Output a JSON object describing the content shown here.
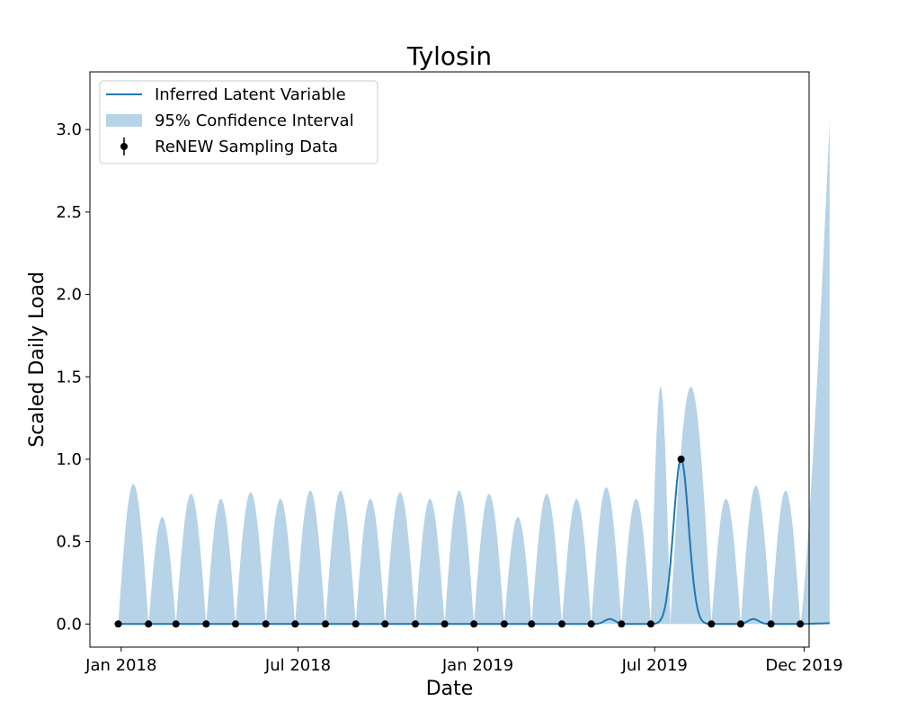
{
  "chart_data": {
    "type": "line",
    "title": "Tylosin",
    "xlabel": "Date",
    "ylabel": "Scaled Daily Load",
    "ylim": [
      -0.14,
      3.35
    ],
    "xlim_days": [
      -32,
      704
    ],
    "x_ticks": [
      {
        "day": 0,
        "label": "Jan 2018"
      },
      {
        "day": 181,
        "label": "Jul 2018"
      },
      {
        "day": 365,
        "label": "Jan 2019"
      },
      {
        "day": 546,
        "label": "Jul 2019"
      },
      {
        "day": 699,
        "label": "Dec 2019"
      }
    ],
    "y_ticks": [
      {
        "value": 0.0,
        "label": "0.0"
      },
      {
        "value": 0.5,
        "label": "0.5"
      },
      {
        "value": 1.0,
        "label": "1.0"
      },
      {
        "value": 1.5,
        "label": "1.5"
      },
      {
        "value": 2.0,
        "label": "2.0"
      },
      {
        "value": 2.5,
        "label": "2.5"
      },
      {
        "value": 3.0,
        "label": "3.0"
      }
    ],
    "legend": {
      "placement": "top-left",
      "entries": [
        {
          "label": "Inferred Latent Variable",
          "kind": "line"
        },
        {
          "label": "95% Confidence Interval",
          "kind": "band"
        },
        {
          "label": "ReNEW Sampling Data",
          "kind": "point"
        }
      ]
    },
    "colors": {
      "line": "#1f77b4",
      "band": "#b6d3e7",
      "points": "#000000"
    },
    "sampling_data": {
      "day": [
        -3,
        28,
        56,
        87,
        117,
        148,
        178,
        209,
        240,
        270,
        301,
        331,
        361,
        392,
        420,
        451,
        481,
        512,
        542,
        573,
        604,
        634,
        665,
        695
      ],
      "value": [
        0,
        0,
        0,
        0,
        0,
        0,
        0,
        0,
        0,
        0,
        0,
        0,
        0,
        0,
        0,
        0,
        0,
        0,
        0,
        1.0,
        0,
        0,
        0,
        0
      ]
    },
    "latent_bumps": [
      {
        "center_day": 573,
        "peak": 1.0,
        "halfwidth_days": 17
      },
      {
        "center_day": 500,
        "peak": 0.03,
        "halfwidth_days": 12
      },
      {
        "center_day": 647,
        "peak": 0.03,
        "halfwidth_days": 12
      }
    ],
    "latent_end": {
      "start_day": 695,
      "end_day": 725,
      "end_value": 0.005
    },
    "ci_peaks": [
      {
        "from_day": -3,
        "to_day": 28,
        "peak": 0.85
      },
      {
        "from_day": 28,
        "to_day": 56,
        "peak": 0.65
      },
      {
        "from_day": 56,
        "to_day": 87,
        "peak": 0.79
      },
      {
        "from_day": 87,
        "to_day": 117,
        "peak": 0.76
      },
      {
        "from_day": 117,
        "to_day": 148,
        "peak": 0.8
      },
      {
        "from_day": 148,
        "to_day": 178,
        "peak": 0.76
      },
      {
        "from_day": 178,
        "to_day": 209,
        "peak": 0.81
      },
      {
        "from_day": 209,
        "to_day": 240,
        "peak": 0.81
      },
      {
        "from_day": 240,
        "to_day": 270,
        "peak": 0.76
      },
      {
        "from_day": 270,
        "to_day": 301,
        "peak": 0.8
      },
      {
        "from_day": 301,
        "to_day": 331,
        "peak": 0.76
      },
      {
        "from_day": 331,
        "to_day": 361,
        "peak": 0.81
      },
      {
        "from_day": 361,
        "to_day": 392,
        "peak": 0.79
      },
      {
        "from_day": 392,
        "to_day": 420,
        "peak": 0.65
      },
      {
        "from_day": 420,
        "to_day": 451,
        "peak": 0.79
      },
      {
        "from_day": 451,
        "to_day": 481,
        "peak": 0.76
      },
      {
        "from_day": 481,
        "to_day": 512,
        "peak": 0.83
      },
      {
        "from_day": 512,
        "to_day": 542,
        "peak": 0.76
      },
      {
        "from_day": 542,
        "to_day": 562,
        "peak": 1.44
      },
      {
        "from_day": 562,
        "to_day": 604,
        "peak": 1.44
      },
      {
        "from_day": 604,
        "to_day": 634,
        "peak": 0.76
      },
      {
        "from_day": 634,
        "to_day": 665,
        "peak": 0.84
      },
      {
        "from_day": 665,
        "to_day": 695,
        "peak": 0.81
      },
      {
        "from_day": 695,
        "to_day": 725,
        "peak": 3.05
      }
    ]
  }
}
